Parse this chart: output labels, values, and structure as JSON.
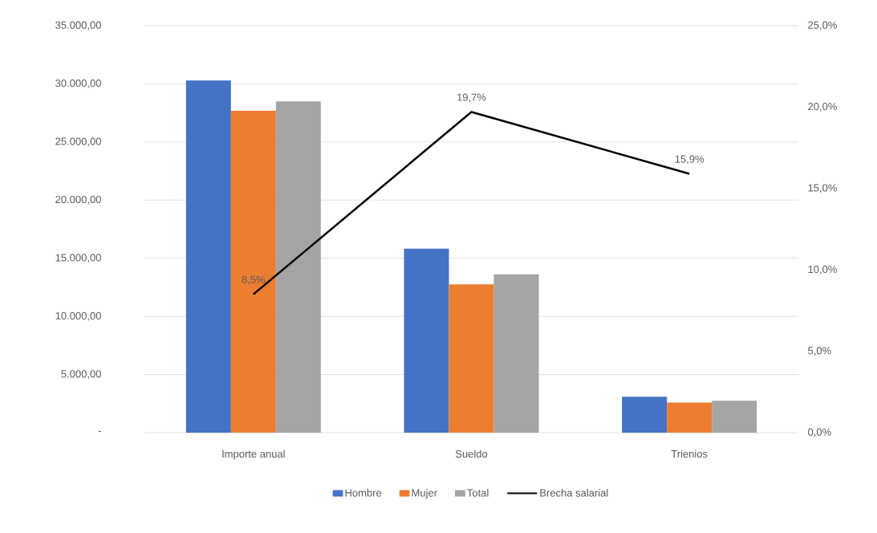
{
  "chart_data": {
    "type": "bar",
    "categories": [
      "Importe anual",
      "Sueldo",
      "Trienios"
    ],
    "series": [
      {
        "name": "Hombre",
        "color": "#4472c4",
        "values": [
          30280,
          15830,
          3090
        ]
      },
      {
        "name": "Mujer",
        "color": "#ed7d31",
        "values": [
          27680,
          12750,
          2580
        ]
      },
      {
        "name": "Total",
        "color": "#a5a5a5",
        "values": [
          28490,
          13620,
          2740
        ]
      },
      {
        "name": "Brecha salarial",
        "type": "line",
        "axis": "y2",
        "color": "#000000",
        "values": [
          8.5,
          19.7,
          15.9
        ],
        "value_labels": [
          "8,5%",
          "19,7%",
          "15,9%"
        ]
      }
    ],
    "ylim": [
      0,
      35000
    ],
    "yticks": [
      {
        "value": 0,
        "label": "-"
      },
      {
        "value": 5000,
        "label": "5.000,00"
      },
      {
        "value": 10000,
        "label": "10.000,00"
      },
      {
        "value": 15000,
        "label": "15.000,00"
      },
      {
        "value": 20000,
        "label": "20.000,00"
      },
      {
        "value": 25000,
        "label": "25.000,00"
      },
      {
        "value": 30000,
        "label": "30.000,00"
      },
      {
        "value": 35000,
        "label": "35.000,00"
      }
    ],
    "y2lim": [
      0,
      25
    ],
    "y2ticks": [
      {
        "value": 0,
        "label": "0,0%"
      },
      {
        "value": 5,
        "label": "5,0%"
      },
      {
        "value": 10,
        "label": "10,0%"
      },
      {
        "value": 15,
        "label": "15,0%"
      },
      {
        "value": 20,
        "label": "20,0%"
      },
      {
        "value": 25,
        "label": "25,0%"
      }
    ],
    "grid": "y",
    "legend": "bottom",
    "marker": "none",
    "line_style": "solid"
  }
}
